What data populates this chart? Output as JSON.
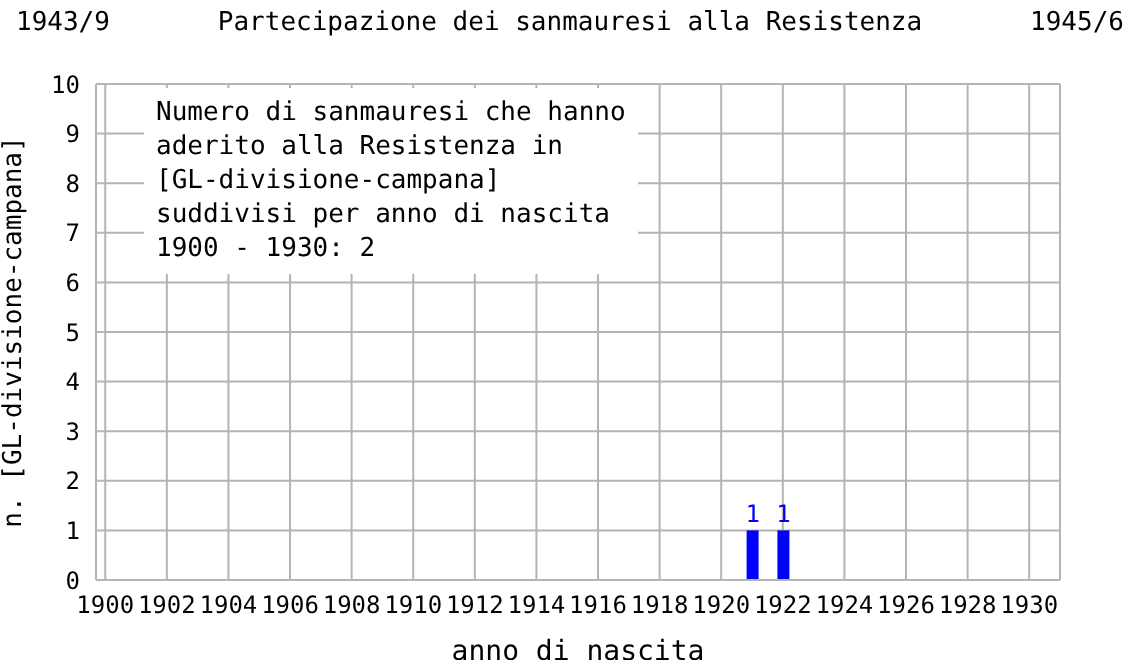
{
  "chart_data": {
    "type": "bar",
    "title": "Partecipazione dei sanmauresi alla Resistenza",
    "xlabel": "anno di nascita",
    "ylabel": "n. [GL-divisione-campana]",
    "annotations": [
      "1943/9",
      "1945/6",
      "Numero di sanmauresi che hanno\naderito alla Resistenza in\n[GL-divisione-campana]\nsuddivisi per anno di nascita\n1900 - 1930: 2"
    ],
    "x": [
      1900,
      1901,
      1902,
      1903,
      1904,
      1905,
      1906,
      1907,
      1908,
      1909,
      1910,
      1911,
      1912,
      1913,
      1914,
      1915,
      1916,
      1917,
      1918,
      1919,
      1920,
      1921,
      1922,
      1923,
      1924,
      1925,
      1926,
      1927,
      1928,
      1929,
      1930
    ],
    "values": [
      0,
      0,
      0,
      0,
      0,
      0,
      0,
      0,
      0,
      0,
      0,
      0,
      0,
      0,
      0,
      0,
      0,
      0,
      0,
      0,
      0,
      1,
      1,
      0,
      0,
      0,
      0,
      0,
      0,
      0,
      0
    ],
    "value_labels": [
      null,
      null,
      null,
      null,
      null,
      null,
      null,
      null,
      null,
      null,
      null,
      null,
      null,
      null,
      null,
      null,
      null,
      null,
      null,
      null,
      null,
      "1",
      "1",
      null,
      null,
      null,
      null,
      null,
      null,
      null,
      null
    ],
    "color": "#0000ff",
    "xlim": [
      1899.7,
      1931
    ],
    "xticks": [
      1900,
      1902,
      1904,
      1906,
      1908,
      1910,
      1912,
      1914,
      1916,
      1918,
      1920,
      1922,
      1924,
      1926,
      1928,
      1930
    ],
    "ylim": [
      0,
      10
    ],
    "yticks": [
      0,
      1,
      2,
      3,
      4,
      5,
      6,
      7,
      8,
      9,
      10
    ],
    "grid": true
  }
}
